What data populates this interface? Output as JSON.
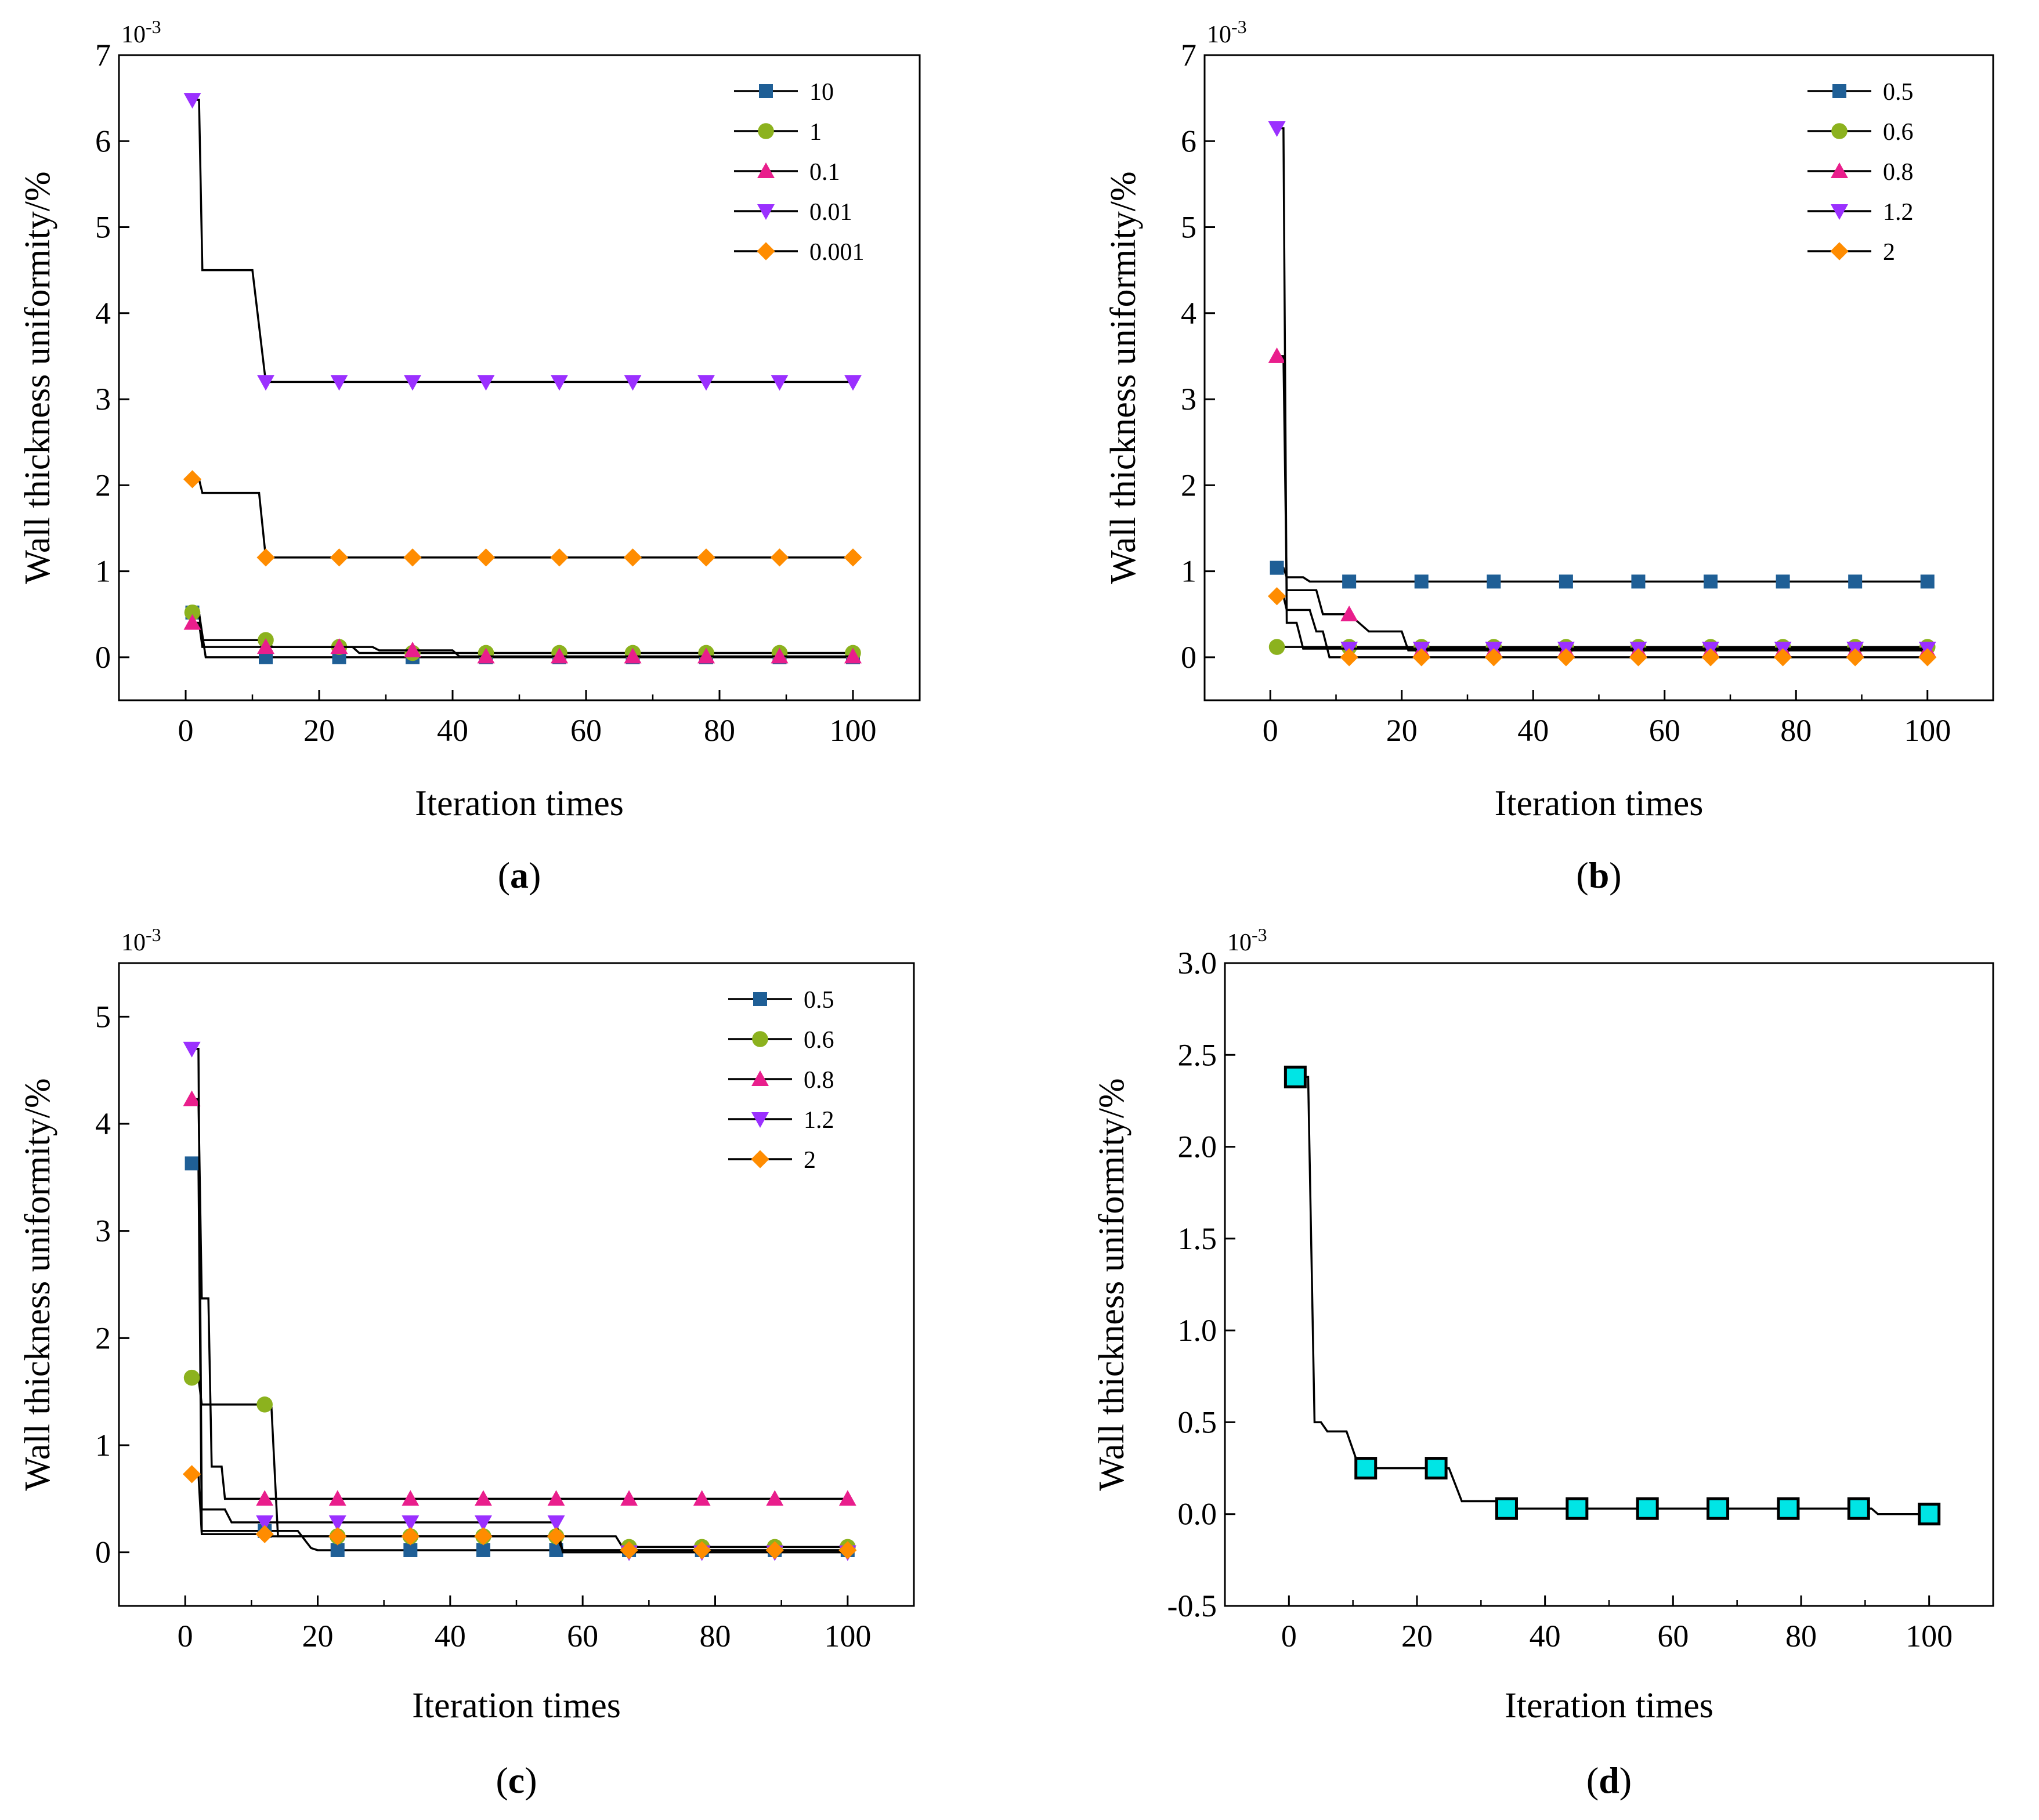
{
  "chart_data": [
    {
      "id": "a",
      "type": "line",
      "caption": "a",
      "xlabel": "Iteration times",
      "ylabel": "Wall thickness uniformity/%",
      "y_multiplier": "10-3",
      "xlim": [
        -10,
        110
      ],
      "ylim": [
        -0.5,
        7
      ],
      "xticks": [
        0,
        20,
        40,
        60,
        80,
        100
      ],
      "yticks": [
        0,
        1,
        2,
        3,
        4,
        5,
        6,
        7
      ],
      "ytick_labels": [
        "0",
        "1",
        "2",
        "3",
        "4",
        "5",
        "6",
        "7"
      ],
      "legend_position": "top-right",
      "series": [
        {
          "name": "10",
          "marker": "square",
          "color": "#1f5f96",
          "points": [
            [
              1,
              0.52
            ],
            [
              2,
              0.52
            ],
            [
              3,
              0
            ],
            [
              100,
              0
            ]
          ]
        },
        {
          "name": "1",
          "marker": "circle",
          "color": "#8cb21e",
          "points": [
            [
              1,
              0.52
            ],
            [
              2,
              0.52
            ],
            [
              2.5,
              0.2
            ],
            [
              12,
              0.2
            ],
            [
              13,
              0.12
            ],
            [
              25,
              0.12
            ],
            [
              26,
              0.05
            ],
            [
              100,
              0.05
            ]
          ]
        },
        {
          "name": "0.1",
          "marker": "triangle-up",
          "color": "#e91e8c",
          "points": [
            [
              1,
              0.4
            ],
            [
              2,
              0.4
            ],
            [
              2.5,
              0.12
            ],
            [
              15,
              0.12
            ],
            [
              16,
              0.12
            ],
            [
              28,
              0.12
            ],
            [
              29,
              0.08
            ],
            [
              40,
              0.08
            ],
            [
              41,
              0.01
            ],
            [
              100,
              0.01
            ]
          ]
        },
        {
          "name": "0.01",
          "marker": "triangle-down",
          "color": "#9b30ff",
          "points": [
            [
              1,
              6.48
            ],
            [
              2,
              6.48
            ],
            [
              2.5,
              4.5
            ],
            [
              10,
              4.5
            ],
            [
              12,
              3.2
            ],
            [
              100,
              3.2
            ]
          ]
        },
        {
          "name": "0.001",
          "marker": "diamond",
          "color": "#ff8c00",
          "points": [
            [
              1,
              2.07
            ],
            [
              2,
              2.07
            ],
            [
              2.5,
              1.91
            ],
            [
              11,
              1.91
            ],
            [
              12,
              1.16
            ],
            [
              100,
              1.16
            ]
          ]
        }
      ],
      "marker_x": [
        1,
        12,
        23,
        34,
        45,
        56,
        67,
        78,
        89,
        100
      ]
    },
    {
      "id": "b",
      "type": "line",
      "caption": "b",
      "xlabel": "Iteration times",
      "ylabel": "Wall thickness uniformity/%",
      "y_multiplier": "10-3",
      "xlim": [
        -10,
        110
      ],
      "ylim": [
        -0.5,
        7
      ],
      "xticks": [
        0,
        20,
        40,
        60,
        80,
        100
      ],
      "yticks": [
        0,
        1,
        2,
        3,
        4,
        5,
        6,
        7
      ],
      "ytick_labels": [
        "0",
        "1",
        "2",
        "3",
        "4",
        "5",
        "6",
        "7"
      ],
      "legend_position": "top-right",
      "series": [
        {
          "name": "0.5",
          "marker": "square",
          "color": "#1f5f96",
          "points": [
            [
              1,
              1.04
            ],
            [
              2,
              1.04
            ],
            [
              2.5,
              0.93
            ],
            [
              5,
              0.93
            ],
            [
              6,
              0.88
            ],
            [
              100,
              0.88
            ]
          ]
        },
        {
          "name": "0.6",
          "marker": "circle",
          "color": "#8cb21e",
          "points": [
            [
              1,
              0.12
            ],
            [
              100,
              0.12
            ]
          ]
        },
        {
          "name": "0.8",
          "marker": "triangle-up",
          "color": "#e91e8c",
          "points": [
            [
              1,
              3.5
            ],
            [
              2,
              3.5
            ],
            [
              2.5,
              0.78
            ],
            [
              7,
              0.78
            ],
            [
              8,
              0.5
            ],
            [
              12,
              0.5
            ],
            [
              15,
              0.3
            ],
            [
              20,
              0.3
            ],
            [
              21,
              0.08
            ],
            [
              100,
              0.08
            ]
          ]
        },
        {
          "name": "1.2",
          "marker": "triangle-down",
          "color": "#9b30ff",
          "points": [
            [
              1,
              6.15
            ],
            [
              2,
              6.15
            ],
            [
              2.5,
              0.4
            ],
            [
              4,
              0.4
            ],
            [
              5,
              0.1
            ],
            [
              100,
              0.1
            ]
          ]
        },
        {
          "name": "2",
          "marker": "diamond",
          "color": "#ff8c00",
          "points": [
            [
              1,
              0.71
            ],
            [
              2,
              0.71
            ],
            [
              2.5,
              0.55
            ],
            [
              6,
              0.55
            ],
            [
              7,
              0.3
            ],
            [
              8,
              0.3
            ],
            [
              9,
              0
            ],
            [
              100,
              0
            ]
          ]
        }
      ],
      "marker_x": [
        1,
        12,
        23,
        34,
        45,
        56,
        67,
        78,
        89,
        100
      ]
    },
    {
      "id": "c",
      "type": "line",
      "caption": "c",
      "xlabel": "Iteration times",
      "ylabel": "Wall thickness uniformity/%",
      "y_multiplier": "10-3",
      "xlim": [
        -10,
        110
      ],
      "ylim": [
        -0.5,
        5.5
      ],
      "xticks": [
        0,
        20,
        40,
        60,
        80,
        100
      ],
      "yticks": [
        0,
        1,
        2,
        3,
        4,
        5
      ],
      "ytick_labels": [
        "0",
        "1",
        "2",
        "3",
        "4",
        "5"
      ],
      "legend_position": "top-right",
      "series": [
        {
          "name": "0.5",
          "marker": "square",
          "color": "#1f5f96",
          "points": [
            [
              1,
              3.63
            ],
            [
              2,
              3.63
            ],
            [
              2.5,
              0.2
            ],
            [
              17,
              0.2
            ],
            [
              19,
              0.04
            ],
            [
              20,
              0.02
            ],
            [
              100,
              0.02
            ]
          ]
        },
        {
          "name": "0.6",
          "marker": "circle",
          "color": "#8cb21e",
          "points": [
            [
              1,
              1.63
            ],
            [
              2,
              1.63
            ],
            [
              2.5,
              1.38
            ],
            [
              12,
              1.38
            ],
            [
              13,
              1.38
            ],
            [
              14,
              0.15
            ],
            [
              56,
              0.15
            ],
            [
              65,
              0.15
            ],
            [
              66,
              0.05
            ],
            [
              100,
              0.05
            ]
          ]
        },
        {
          "name": "0.8",
          "marker": "triangle-up",
          "color": "#e91e8c",
          "points": [
            [
              1,
              4.23
            ],
            [
              2,
              4.23
            ],
            [
              2.5,
              2.37
            ],
            [
              3.5,
              2.37
            ],
            [
              4,
              0.8
            ],
            [
              5.5,
              0.8
            ],
            [
              6,
              0.5
            ],
            [
              100,
              0.5
            ]
          ]
        },
        {
          "name": "1.2",
          "marker": "triangle-down",
          "color": "#9b30ff",
          "points": [
            [
              1,
              4.7
            ],
            [
              2,
              4.7
            ],
            [
              2.5,
              0.4
            ],
            [
              6,
              0.4
            ],
            [
              7,
              0.28
            ],
            [
              25,
              0.28
            ],
            [
              26,
              0.28
            ],
            [
              56,
              0.28
            ],
            [
              57,
              0
            ],
            [
              100,
              0
            ]
          ]
        },
        {
          "name": "2",
          "marker": "diamond",
          "color": "#ff8c00",
          "points": [
            [
              1,
              0.73
            ],
            [
              2,
              0.73
            ],
            [
              2.5,
              0.17
            ],
            [
              12,
              0.17
            ],
            [
              13,
              0.15
            ],
            [
              56,
              0.15
            ],
            [
              57,
              0.02
            ],
            [
              100,
              0.02
            ]
          ]
        }
      ],
      "marker_x": [
        1,
        12,
        23,
        34,
        45,
        56,
        67,
        78,
        89,
        100
      ]
    },
    {
      "id": "d",
      "type": "line",
      "caption": "d",
      "xlabel": "Iteration times",
      "ylabel": "Wall thickness uniformity/%",
      "y_multiplier": "10-3",
      "xlim": [
        -10,
        110
      ],
      "ylim": [
        -0.5,
        3.0
      ],
      "xticks": [
        0,
        20,
        40,
        60,
        80,
        100
      ],
      "yticks": [
        -0.5,
        0.0,
        0.5,
        1.0,
        1.5,
        2.0,
        2.5,
        3.0
      ],
      "ytick_labels": [
        "-0.5",
        "0.0",
        "0.5",
        "1.0",
        "1.5",
        "2.0",
        "2.5",
        "3.0"
      ],
      "legend_position": "none",
      "series": [
        {
          "name": "",
          "marker": "big-square",
          "color": "#00e5e5",
          "points": [
            [
              1,
              2.38
            ],
            [
              3,
              2.38
            ],
            [
              4,
              0.5
            ],
            [
              5,
              0.5
            ],
            [
              6,
              0.45
            ],
            [
              9,
              0.45
            ],
            [
              11,
              0.25
            ],
            [
              23,
              0.25
            ],
            [
              25,
              0.25
            ],
            [
              27,
              0.07
            ],
            [
              33,
              0.07
            ],
            [
              34,
              0.03
            ],
            [
              91,
              0.03
            ],
            [
              92,
              0
            ],
            [
              100,
              0
            ]
          ]
        }
      ],
      "marker_x": [
        1,
        12,
        23,
        34,
        45,
        56,
        67,
        78,
        89,
        100
      ]
    }
  ]
}
